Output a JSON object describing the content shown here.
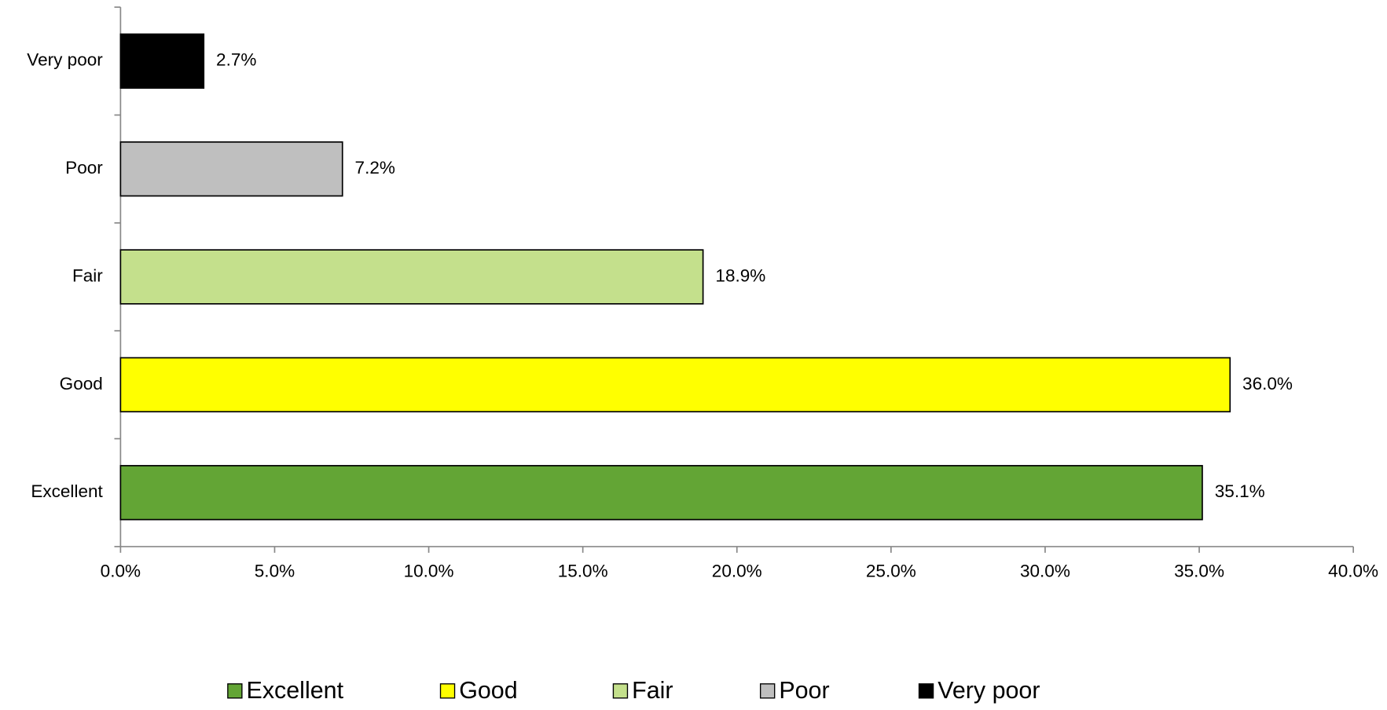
{
  "chart_data": {
    "type": "bar",
    "orientation": "horizontal",
    "categories": [
      "Excellent",
      "Good",
      "Fair",
      "Poor",
      "Very poor"
    ],
    "values": [
      35.1,
      36.0,
      18.9,
      7.2,
      2.7
    ],
    "value_labels": [
      "35.1%",
      "36.0%",
      "18.9%",
      "7.2%",
      "2.7%"
    ],
    "colors": [
      "#63a535",
      "#ffff00",
      "#c4e08c",
      "#bfbfbf",
      "#000000"
    ],
    "xlim": [
      0,
      40
    ],
    "xticks": [
      {
        "value": 0,
        "label": "0.0%"
      },
      {
        "value": 5,
        "label": "5.0%"
      },
      {
        "value": 10,
        "label": "10.0%"
      },
      {
        "value": 15,
        "label": "15.0%"
      },
      {
        "value": 20,
        "label": "20.0%"
      },
      {
        "value": 25,
        "label": "25.0%"
      },
      {
        "value": 30,
        "label": "30.0%"
      },
      {
        "value": 35,
        "label": "35.0%"
      },
      {
        "value": 40,
        "label": "40.0%"
      }
    ],
    "legend": "bottom"
  }
}
